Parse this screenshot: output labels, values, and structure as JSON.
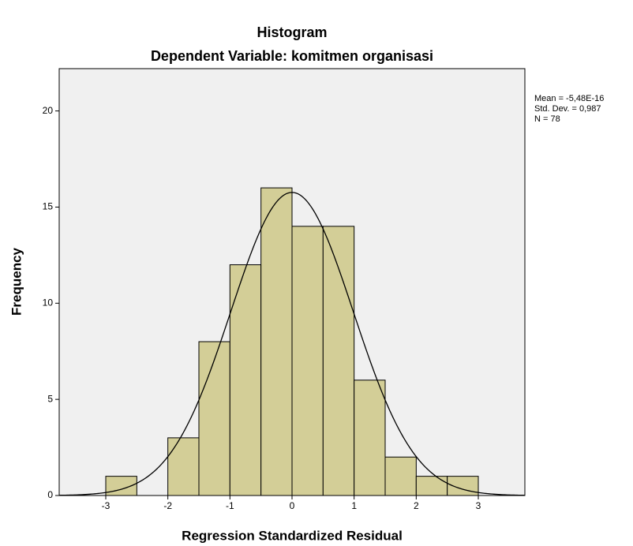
{
  "chart_data": {
    "type": "histogram",
    "title": "Histogram",
    "subtitle": "Dependent Variable: komitmen organisasi",
    "x_label": "Regression Standardized Residual",
    "y_label": "Frequency",
    "bins": [
      -3,
      -2.5,
      -2,
      -1.5,
      -1,
      -0.5,
      0,
      0.5,
      1,
      1.5,
      2,
      2.5,
      3
    ],
    "values": [
      1,
      0,
      3,
      8,
      12,
      16,
      14,
      14,
      6,
      2,
      1,
      1
    ],
    "color": "#d3ce97",
    "xlim": [
      -3.75,
      3.75
    ],
    "xticks": [
      -3,
      -2,
      -1,
      0,
      1,
      2,
      3
    ],
    "ylim": [
      0,
      22.2
    ],
    "yticks": [
      0,
      5,
      10,
      15,
      20
    ],
    "stats": [
      {
        "value": -5.48e-16,
        "label": "Mean = -5,48E-16"
      },
      {
        "value": 0.987,
        "label": "Std. Dev. = 0,987"
      },
      {
        "value": 78,
        "label": "N = 78"
      }
    ]
  }
}
